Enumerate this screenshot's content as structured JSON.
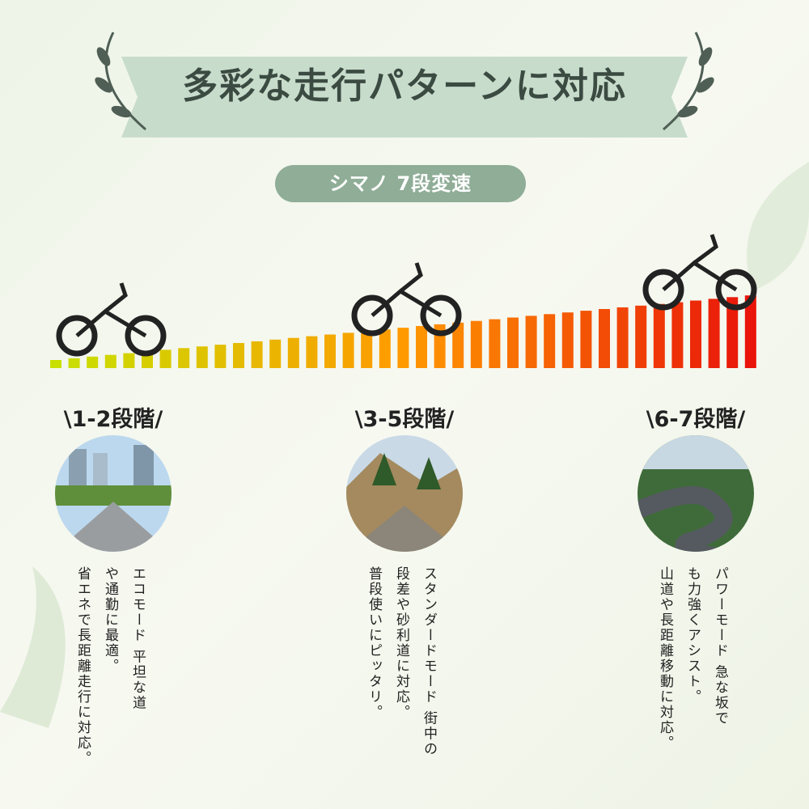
{
  "title": "多彩な走行パターンに対応",
  "badge": "シマノ 7段変速",
  "stages": [
    {
      "label": "\\1-2段階/",
      "lines": [
        "エコモード 平坦な道",
        "や通勤に最適。",
        "省エネで長距離走行に対応。"
      ]
    },
    {
      "label": "\\3-5段階/",
      "lines": [
        "スタンダードモード 街中の",
        "段差や砂利道に対応。",
        "普段使いにピッタリ。"
      ]
    },
    {
      "label": "\\6-7段階/",
      "lines": [
        "パワーモード 急な坂で",
        "も力強くアシスト。",
        "山道や長距離移動に対応。"
      ]
    }
  ]
}
